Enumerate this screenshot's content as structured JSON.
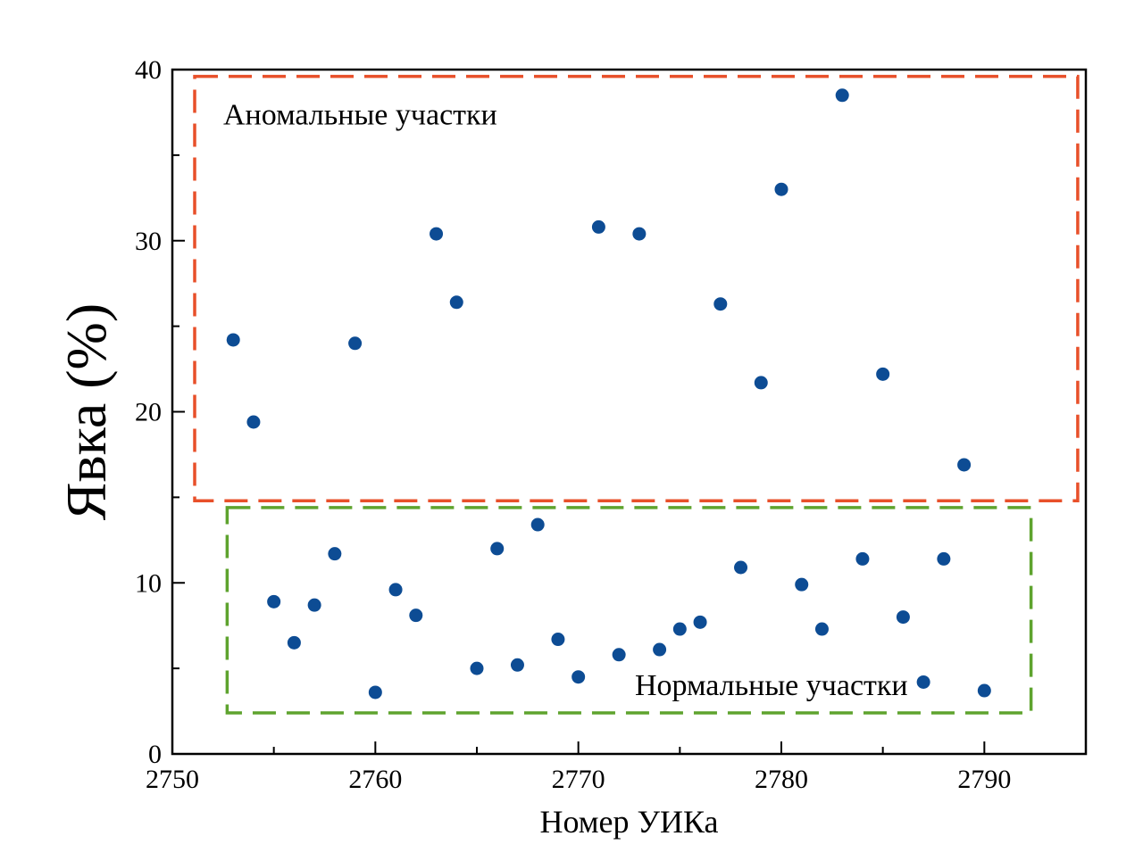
{
  "chart_data": {
    "type": "scatter",
    "title": "",
    "xlabel": "Номер УИКа",
    "ylabel": "Явка (%)",
    "xlim": [
      2750,
      2795
    ],
    "ylim": [
      0,
      40
    ],
    "x_ticks": [
      2750,
      2760,
      2770,
      2780,
      2790
    ],
    "y_ticks": [
      0,
      10,
      20,
      30,
      40
    ],
    "x_minor_step": 5,
    "y_minor_step": 5,
    "grid": false,
    "marker_color": "#0d4c94",
    "series": [
      {
        "points": [
          {
            "x": 2753,
            "y": 24.2
          },
          {
            "x": 2754,
            "y": 19.4
          },
          {
            "x": 2755,
            "y": 8.9
          },
          {
            "x": 2756,
            "y": 6.5
          },
          {
            "x": 2757,
            "y": 8.7
          },
          {
            "x": 2758,
            "y": 11.7
          },
          {
            "x": 2759,
            "y": 24.0
          },
          {
            "x": 2760,
            "y": 3.6
          },
          {
            "x": 2761,
            "y": 9.6
          },
          {
            "x": 2762,
            "y": 8.1
          },
          {
            "x": 2763,
            "y": 30.4
          },
          {
            "x": 2764,
            "y": 26.4
          },
          {
            "x": 2765,
            "y": 5.0
          },
          {
            "x": 2766,
            "y": 12.0
          },
          {
            "x": 2767,
            "y": 5.2
          },
          {
            "x": 2768,
            "y": 13.4
          },
          {
            "x": 2769,
            "y": 6.7
          },
          {
            "x": 2770,
            "y": 4.5
          },
          {
            "x": 2771,
            "y": 30.8
          },
          {
            "x": 2772,
            "y": 5.8
          },
          {
            "x": 2773,
            "y": 30.4
          },
          {
            "x": 2774,
            "y": 6.1
          },
          {
            "x": 2775,
            "y": 7.3
          },
          {
            "x": 2776,
            "y": 7.7
          },
          {
            "x": 2777,
            "y": 26.3
          },
          {
            "x": 2778,
            "y": 10.9
          },
          {
            "x": 2779,
            "y": 21.7
          },
          {
            "x": 2780,
            "y": 33.0
          },
          {
            "x": 2781,
            "y": 9.9
          },
          {
            "x": 2782,
            "y": 7.3
          },
          {
            "x": 2783,
            "y": 38.5
          },
          {
            "x": 2784,
            "y": 11.4
          },
          {
            "x": 2785,
            "y": 22.2
          },
          {
            "x": 2786,
            "y": 8.0
          },
          {
            "x": 2787,
            "y": 4.2
          },
          {
            "x": 2788,
            "y": 11.4
          },
          {
            "x": 2789,
            "y": 16.9
          },
          {
            "x": 2790,
            "y": 3.7
          }
        ]
      }
    ],
    "annotations": [
      {
        "label": "Аномальные участки",
        "color": "#e8502a",
        "x_range": [
          2751.1,
          2794.6
        ],
        "y_range": [
          14.8,
          39.6
        ]
      },
      {
        "label": "Нормальные участки",
        "color": "#5ea32e",
        "x_range": [
          2752.7,
          2792.3
        ],
        "y_range": [
          2.4,
          14.4
        ]
      }
    ]
  }
}
